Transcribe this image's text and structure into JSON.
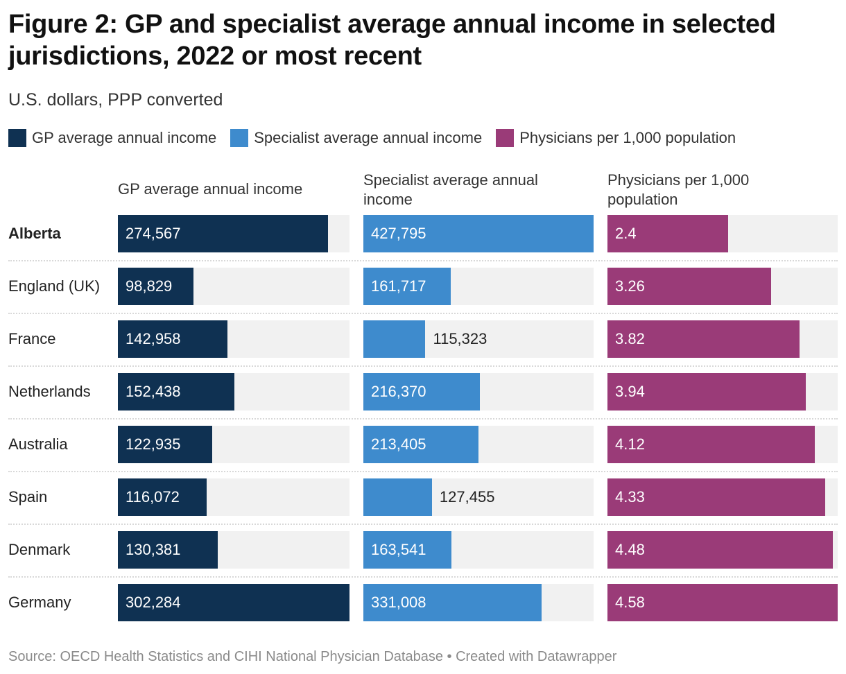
{
  "title": "Figure 2: GP and specialist average annual income in selected jurisdictions, 2022 or most recent",
  "subtitle": "U.S. dollars, PPP converted",
  "footer": "Source: OECD Health Statistics and CIHI National Physician Database • Created with Datawrapper",
  "chart_data": {
    "type": "bar",
    "orientation": "horizontal",
    "legend_position": "top-left",
    "categories": [
      "Alberta",
      "England (UK)",
      "France",
      "Netherlands",
      "Australia",
      "Spain",
      "Denmark",
      "Germany"
    ],
    "highlighted_category": "Alberta",
    "series": [
      {
        "name": "GP average annual income",
        "color": "#0f3152",
        "values": [
          274567,
          98829,
          142958,
          152438,
          122935,
          116072,
          130381,
          302284
        ],
        "labels": [
          "274,567",
          "98,829",
          "142,958",
          "152,438",
          "122,935",
          "116,072",
          "130,381",
          "302,284"
        ]
      },
      {
        "name": "Specialist average annual income",
        "color": "#3e8bcd",
        "values": [
          427795,
          161717,
          115323,
          216370,
          213405,
          127455,
          163541,
          331008
        ],
        "labels": [
          "427,795",
          "161,717",
          "115,323",
          "216,370",
          "213,405",
          "127,455",
          "163,541",
          "331,008"
        ]
      },
      {
        "name": "Physicians per 1,000 population",
        "color": "#9a3b78",
        "values": [
          2.4,
          3.26,
          3.82,
          3.94,
          4.12,
          4.33,
          4.48,
          4.58
        ],
        "labels": [
          "2.4",
          "3.26",
          "3.82",
          "3.94",
          "4.12",
          "4.33",
          "4.48",
          "4.58"
        ]
      }
    ]
  }
}
